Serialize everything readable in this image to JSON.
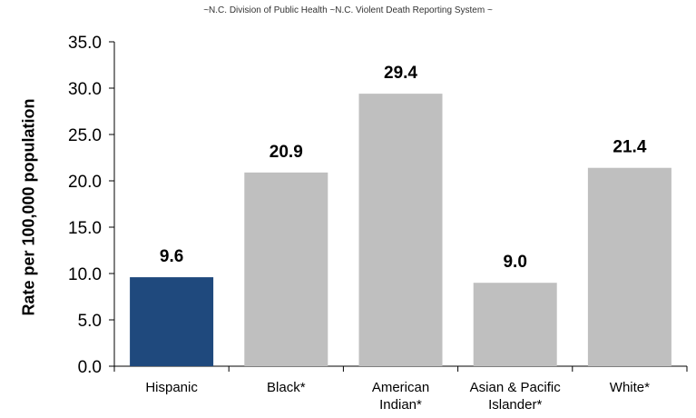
{
  "subtitle": "~N.C. Division of Public Health ~N.C. Violent Death Reporting System ~",
  "colors": {
    "highlight": "#1f497d",
    "default": "#bfbfbf",
    "axis": "#000000"
  },
  "chart_data": {
    "type": "bar",
    "categories": [
      "Hispanic",
      "Black*",
      "American Indian*",
      "Asian & Pacific Islander*",
      "White*"
    ],
    "category_lines": [
      [
        "Hispanic"
      ],
      [
        "Black*"
      ],
      [
        "American",
        "Indian*"
      ],
      [
        "Asian & Pacific",
        "Islander*"
      ],
      [
        "White*"
      ]
    ],
    "values": [
      9.6,
      20.9,
      29.4,
      9.0,
      21.4
    ],
    "data_labels": [
      "9.6",
      "20.9",
      "29.4",
      "9.0",
      "21.4"
    ],
    "highlighted_category": "Hispanic",
    "ylabel": "Rate per 100,000 population",
    "xlabel": "",
    "ylim": [
      0,
      35
    ],
    "yticks": [
      "0.0",
      "5.0",
      "10.0",
      "15.0",
      "20.0",
      "25.0",
      "30.0",
      "35.0"
    ],
    "grid": false,
    "legend": "none"
  }
}
